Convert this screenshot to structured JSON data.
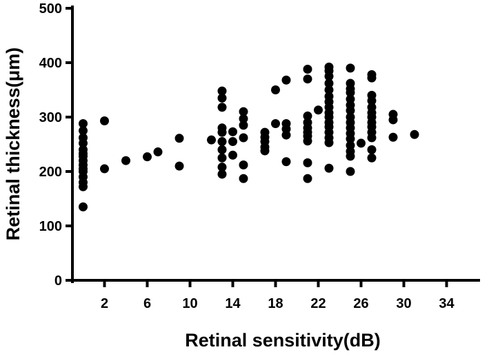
{
  "chart_data": {
    "type": "scatter",
    "title": "",
    "xlabel": "Retinal sensitivity(dB)",
    "ylabel": "Retinal thickness(μm)",
    "xlim": [
      -1,
      37
    ],
    "ylim": [
      0,
      500
    ],
    "x_ticks": [
      2,
      6,
      10,
      14,
      18,
      22,
      26,
      30,
      34
    ],
    "y_ticks": [
      0,
      100,
      200,
      300,
      400,
      500
    ],
    "grid": false,
    "legend": "none",
    "marker_color": "#000000",
    "series": [
      {
        "points": [
          [
            0,
            135
          ],
          [
            0,
            172
          ],
          [
            0,
            180
          ],
          [
            0,
            190
          ],
          [
            0,
            200
          ],
          [
            0,
            205
          ],
          [
            0,
            212
          ],
          [
            0,
            220
          ],
          [
            0,
            228
          ],
          [
            0,
            233
          ],
          [
            0,
            240
          ],
          [
            0,
            252
          ],
          [
            0,
            262
          ],
          [
            0,
            275
          ],
          [
            0,
            288
          ],
          [
            2,
            205
          ],
          [
            2,
            293
          ],
          [
            4,
            220
          ],
          [
            6,
            227
          ],
          [
            7,
            236
          ],
          [
            9,
            210
          ],
          [
            9,
            261
          ],
          [
            12,
            258
          ],
          [
            13,
            195
          ],
          [
            13,
            208
          ],
          [
            13,
            225
          ],
          [
            13,
            240
          ],
          [
            13,
            255
          ],
          [
            13,
            272
          ],
          [
            13,
            280
          ],
          [
            13,
            318
          ],
          [
            13,
            335
          ],
          [
            13,
            348
          ],
          [
            14,
            230
          ],
          [
            14,
            255
          ],
          [
            14,
            273
          ],
          [
            15,
            187
          ],
          [
            15,
            212
          ],
          [
            15,
            262
          ],
          [
            15,
            285
          ],
          [
            15,
            297
          ],
          [
            15,
            310
          ],
          [
            17,
            238
          ],
          [
            17,
            245
          ],
          [
            17,
            255
          ],
          [
            17,
            263
          ],
          [
            17,
            272
          ],
          [
            18,
            288
          ],
          [
            18,
            350
          ],
          [
            19,
            218
          ],
          [
            19,
            267
          ],
          [
            19,
            278
          ],
          [
            19,
            288
          ],
          [
            19,
            368
          ],
          [
            21,
            187
          ],
          [
            21,
            216
          ],
          [
            21,
            256
          ],
          [
            21,
            265
          ],
          [
            21,
            272
          ],
          [
            21,
            280
          ],
          [
            21,
            290
          ],
          [
            21,
            302
          ],
          [
            21,
            370
          ],
          [
            21,
            388
          ],
          [
            22,
            313
          ],
          [
            23,
            206
          ],
          [
            23,
            253
          ],
          [
            23,
            262
          ],
          [
            23,
            272
          ],
          [
            23,
            282
          ],
          [
            23,
            290
          ],
          [
            23,
            300
          ],
          [
            23,
            308
          ],
          [
            23,
            318
          ],
          [
            23,
            328
          ],
          [
            23,
            338
          ],
          [
            23,
            350
          ],
          [
            23,
            362
          ],
          [
            23,
            375
          ],
          [
            23,
            385
          ],
          [
            23,
            392
          ],
          [
            25,
            200
          ],
          [
            25,
            228
          ],
          [
            25,
            237
          ],
          [
            25,
            248
          ],
          [
            25,
            260
          ],
          [
            25,
            270
          ],
          [
            25,
            280
          ],
          [
            25,
            290
          ],
          [
            25,
            300
          ],
          [
            25,
            312
          ],
          [
            25,
            322
          ],
          [
            25,
            333
          ],
          [
            25,
            345
          ],
          [
            25,
            352
          ],
          [
            25,
            362
          ],
          [
            25,
            390
          ],
          [
            26,
            252
          ],
          [
            27,
            225
          ],
          [
            27,
            240
          ],
          [
            27,
            262
          ],
          [
            27,
            272
          ],
          [
            27,
            282
          ],
          [
            27,
            290
          ],
          [
            27,
            300
          ],
          [
            27,
            308
          ],
          [
            27,
            318
          ],
          [
            27,
            330
          ],
          [
            27,
            340
          ],
          [
            27,
            372
          ],
          [
            27,
            378
          ],
          [
            29,
            263
          ],
          [
            29,
            295
          ],
          [
            29,
            305
          ],
          [
            31,
            268
          ]
        ]
      }
    ]
  }
}
